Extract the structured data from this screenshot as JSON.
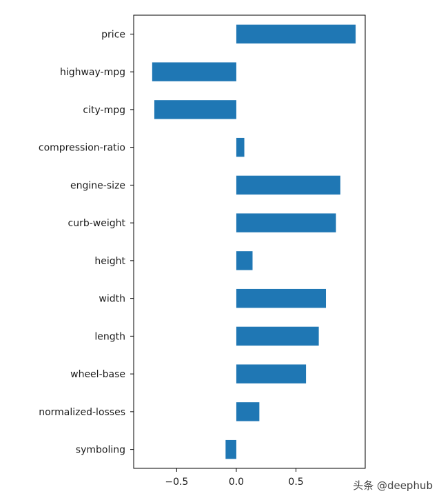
{
  "chart_data": {
    "type": "bar",
    "orientation": "horizontal",
    "categories": [
      "price",
      "highway-mpg",
      "city-mpg",
      "compression-ratio",
      "engine-size",
      "curb-weight",
      "height",
      "width",
      "length",
      "wheel-base",
      "normalized-losses",
      "symboling"
    ],
    "values": [
      1.0,
      -0.705,
      -0.687,
      0.067,
      0.872,
      0.835,
      0.136,
      0.751,
      0.691,
      0.584,
      0.193,
      -0.09
    ],
    "xticks": [
      "−0.5",
      "0.0",
      "0.5"
    ],
    "xtick_values": [
      -0.5,
      0.0,
      0.5
    ],
    "xlim": [
      -0.86,
      1.08
    ],
    "title": "",
    "xlabel": "",
    "ylabel": "",
    "grid": false,
    "bar_color": "#1f77b4"
  },
  "watermark": "头条 @deephub"
}
